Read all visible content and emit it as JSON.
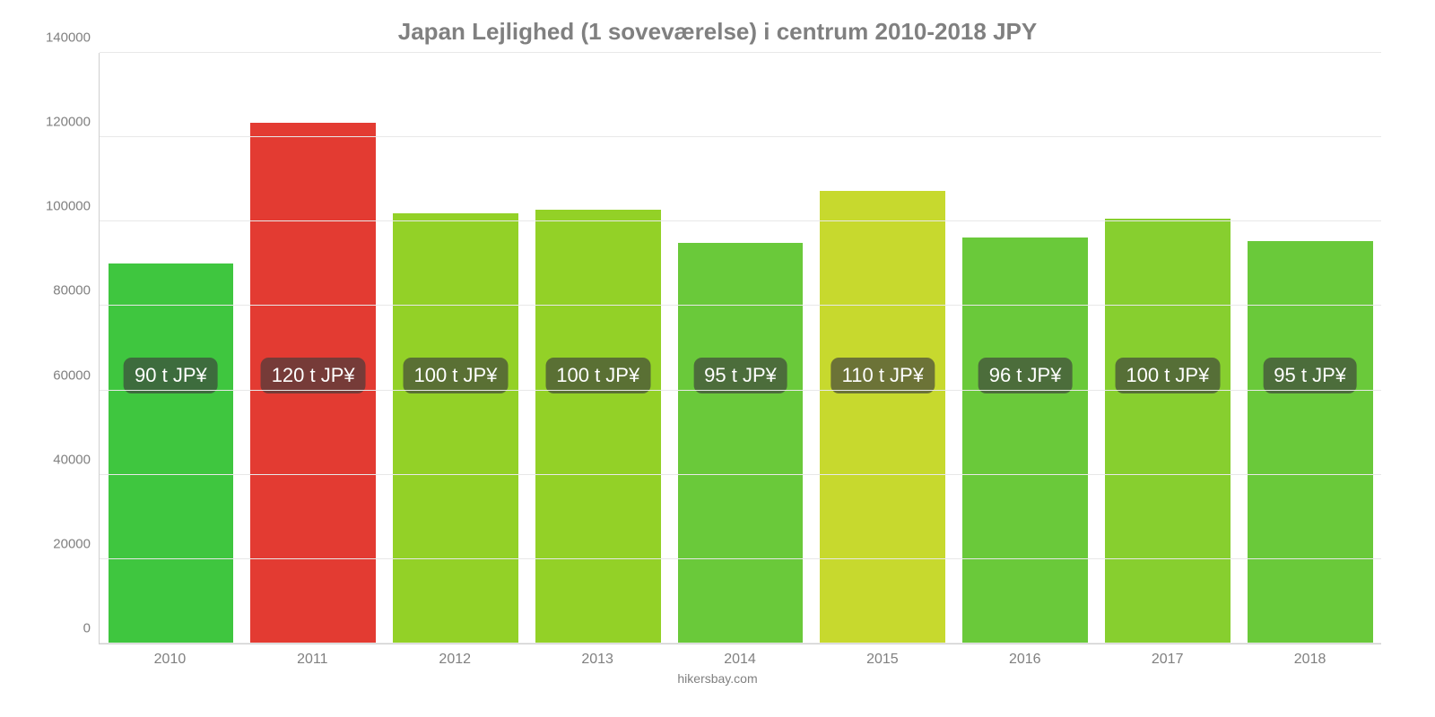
{
  "chart": {
    "type": "bar",
    "title": "Japan Lejlighed (1 soveværelse) i centrum 2010-2018 JPY",
    "title_color": "#808080",
    "title_fontsize": 26,
    "background_color": "#ffffff",
    "grid_color": "#e8e8e8",
    "axis_color": "#d0d0d0",
    "label_color": "#808080",
    "ylim": [
      0,
      140000
    ],
    "yticks": [
      0,
      20000,
      40000,
      60000,
      80000,
      100000,
      120000,
      140000
    ],
    "bar_width_pct": 88,
    "data_label_y_value": 55000,
    "data_label_bg": "rgba(60,60,60,0.65)",
    "data_label_color": "#ffffff",
    "data_label_fontsize": 22,
    "data_label_radius": 9,
    "categories": [
      "2010",
      "2011",
      "2012",
      "2013",
      "2014",
      "2015",
      "2016",
      "2017",
      "2018"
    ],
    "values": [
      90000,
      123500,
      102000,
      102800,
      95000,
      107200,
      96200,
      100800,
      95300
    ],
    "value_labels": [
      "90 t JP¥",
      "120 t JP¥",
      "100 t JP¥",
      "100 t JP¥",
      "95 t JP¥",
      "110 t JP¥",
      "96 t JP¥",
      "100 t JP¥",
      "95 t JP¥"
    ],
    "bar_colors": [
      "#3fc63f",
      "#e33b32",
      "#93d127",
      "#93d127",
      "#6ac93a",
      "#c7d92e",
      "#6ac93a",
      "#87cf2f",
      "#6ac93a"
    ],
    "xlabel_fontsize": 16,
    "ylabel_fontsize": 15,
    "footer": "hikersbay.com"
  }
}
